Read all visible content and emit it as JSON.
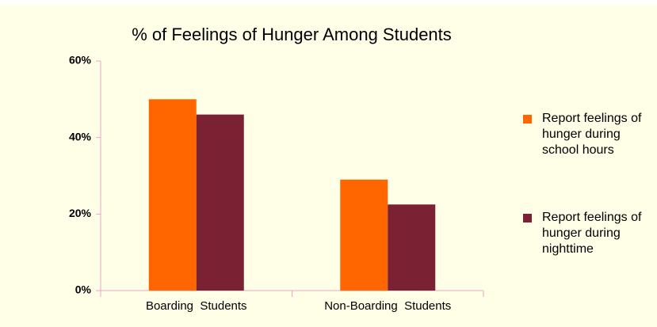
{
  "chart_data": {
    "type": "bar",
    "title": "% of Feelings of Hunger Among Students",
    "categories": [
      "Boarding  Students",
      "Non-Boarding  Students"
    ],
    "series": [
      {
        "name": "Report feelings of hunger during school hours",
        "color": "#ff6600",
        "values": [
          50,
          29
        ]
      },
      {
        "name": "Report feelings of hunger during nighttime",
        "color": "#7a2233",
        "values": [
          46,
          22.5
        ]
      }
    ],
    "ylim": [
      0,
      60
    ],
    "yticks": [
      {
        "value": 0,
        "label": "0%"
      },
      {
        "value": 20,
        "label": "20%"
      },
      {
        "value": 40,
        "label": "40%"
      },
      {
        "value": 60,
        "label": "60%"
      }
    ],
    "legend": "right"
  }
}
